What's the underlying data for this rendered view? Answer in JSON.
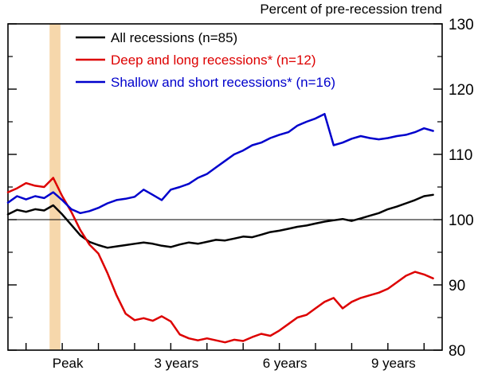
{
  "chart_data": {
    "type": "line",
    "title": "Percent of pre-recession trend",
    "xlabel": "",
    "ylabel": "",
    "ylim": [
      80,
      130
    ],
    "yticks": [
      80,
      90,
      100,
      110,
      120,
      130
    ],
    "yticks_minor": [
      85,
      95,
      105,
      115,
      125
    ],
    "xlim": [
      -1.5,
      10.5
    ],
    "xtick_years": [
      -1,
      0,
      1,
      2,
      3,
      4,
      5,
      6,
      7,
      8,
      9,
      10
    ],
    "xlabels": [
      {
        "year": 0,
        "label": "Peak"
      },
      {
        "year": 3,
        "label": "3 years"
      },
      {
        "year": 6,
        "label": "6 years"
      },
      {
        "year": 9,
        "label": "9 years"
      }
    ],
    "reference_line": 100,
    "recession_band_years": [
      -0.35,
      -0.05
    ],
    "recession_band_color": "#f6d7ab",
    "grid": false,
    "legend_position": "top-left",
    "x_years": [
      -1.5,
      -1.25,
      -1,
      -0.75,
      -0.5,
      -0.25,
      0,
      0.25,
      0.5,
      0.75,
      1,
      1.25,
      1.5,
      1.75,
      2,
      2.25,
      2.5,
      2.75,
      3,
      3.25,
      3.5,
      3.75,
      4,
      4.25,
      4.5,
      4.75,
      5,
      5.25,
      5.5,
      5.75,
      6,
      6.25,
      6.5,
      6.75,
      7,
      7.25,
      7.5,
      7.75,
      8,
      8.25,
      8.5,
      8.75,
      9,
      9.25,
      9.5,
      9.75,
      10,
      10.25
    ],
    "series": [
      {
        "name": "All recessions (n=85)",
        "color": "#000000",
        "values": [
          100.8,
          101.5,
          101.2,
          101.6,
          101.4,
          102.2,
          100.8,
          99.2,
          97.6,
          96.6,
          96.1,
          95.7,
          95.9,
          96.1,
          96.3,
          96.5,
          96.3,
          96.0,
          95.8,
          96.2,
          96.5,
          96.3,
          96.6,
          96.9,
          96.8,
          97.1,
          97.4,
          97.3,
          97.7,
          98.1,
          98.3,
          98.6,
          98.9,
          99.1,
          99.4,
          99.7,
          99.9,
          100.1,
          99.8,
          100.2,
          100.6,
          101.0,
          101.6,
          102.0,
          102.5,
          103.0,
          103.6,
          103.8
        ]
      },
      {
        "name": "Deep and long recessions* (n=12)",
        "color": "#dd0000",
        "values": [
          104.2,
          104.8,
          105.6,
          105.2,
          105.0,
          106.4,
          103.6,
          101.2,
          98.4,
          96.2,
          94.8,
          91.8,
          88.4,
          85.6,
          84.6,
          84.9,
          84.5,
          85.2,
          84.4,
          82.4,
          81.8,
          81.5,
          81.8,
          81.5,
          81.2,
          81.6,
          81.4,
          82.0,
          82.5,
          82.2,
          83.0,
          84.0,
          85.0,
          85.4,
          86.4,
          87.4,
          88.0,
          86.4,
          87.4,
          88.0,
          88.4,
          88.8,
          89.4,
          90.4,
          91.4,
          92.0,
          91.6,
          91.0
        ]
      },
      {
        "name": "Shallow and short recessions* (n=16)",
        "color": "#0000cc",
        "values": [
          102.6,
          103.6,
          103.1,
          103.6,
          103.3,
          104.2,
          103.0,
          101.6,
          101.0,
          101.3,
          101.8,
          102.5,
          103.0,
          103.2,
          103.5,
          104.6,
          103.8,
          103.0,
          104.6,
          105.0,
          105.5,
          106.4,
          107.0,
          108.0,
          109.0,
          110.0,
          110.6,
          111.4,
          111.8,
          112.5,
          113.0,
          113.4,
          114.4,
          115.0,
          115.5,
          116.2,
          111.4,
          111.8,
          112.4,
          112.8,
          112.5,
          112.3,
          112.5,
          112.8,
          113.0,
          113.4,
          114.0,
          113.6
        ]
      }
    ]
  }
}
